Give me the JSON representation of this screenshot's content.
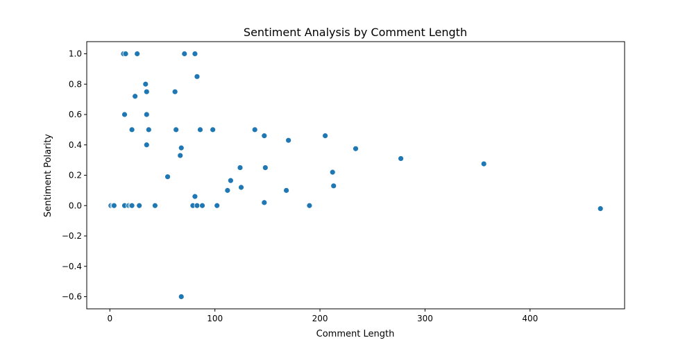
{
  "chart_data": {
    "type": "scatter",
    "title": "Sentiment Analysis by Comment Length",
    "xlabel": "Comment Length",
    "ylabel": "Sentiment Polarity",
    "xlim": [
      -22,
      490
    ],
    "ylim": [
      -0.68,
      1.08
    ],
    "xticks": [
      0,
      100,
      200,
      300,
      400
    ],
    "yticks": [
      -0.6,
      -0.4,
      -0.2,
      0.0,
      0.2,
      0.4,
      0.6,
      0.8,
      1.0
    ],
    "grid": false,
    "color": "#1f77b4",
    "points": [
      {
        "x": 13,
        "y": 1.0
      },
      {
        "x": 15,
        "y": 1.0
      },
      {
        "x": 26,
        "y": 1.0
      },
      {
        "x": 71,
        "y": 1.0
      },
      {
        "x": 81,
        "y": 1.0
      },
      {
        "x": 83,
        "y": 0.85
      },
      {
        "x": 34,
        "y": 0.8
      },
      {
        "x": 35,
        "y": 0.75
      },
      {
        "x": 62,
        "y": 0.75
      },
      {
        "x": 24,
        "y": 0.72
      },
      {
        "x": 14,
        "y": 0.6
      },
      {
        "x": 35,
        "y": 0.6
      },
      {
        "x": 21,
        "y": 0.5
      },
      {
        "x": 37,
        "y": 0.5
      },
      {
        "x": 63,
        "y": 0.5
      },
      {
        "x": 86,
        "y": 0.5
      },
      {
        "x": 98,
        "y": 0.5
      },
      {
        "x": 138,
        "y": 0.5
      },
      {
        "x": 147,
        "y": 0.46
      },
      {
        "x": 205,
        "y": 0.46
      },
      {
        "x": 170,
        "y": 0.43
      },
      {
        "x": 35,
        "y": 0.4
      },
      {
        "x": 68,
        "y": 0.38
      },
      {
        "x": 234,
        "y": 0.375
      },
      {
        "x": 67,
        "y": 0.33
      },
      {
        "x": 277,
        "y": 0.31
      },
      {
        "x": 356,
        "y": 0.275
      },
      {
        "x": 124,
        "y": 0.25
      },
      {
        "x": 148,
        "y": 0.25
      },
      {
        "x": 212,
        "y": 0.22
      },
      {
        "x": 55,
        "y": 0.19
      },
      {
        "x": 115,
        "y": 0.165
      },
      {
        "x": 213,
        "y": 0.13
      },
      {
        "x": 125,
        "y": 0.12
      },
      {
        "x": 112,
        "y": 0.1
      },
      {
        "x": 168,
        "y": 0.1
      },
      {
        "x": 81,
        "y": 0.06
      },
      {
        "x": 147,
        "y": 0.02
      },
      {
        "x": 1,
        "y": 0.0
      },
      {
        "x": 3,
        "y": 0.0
      },
      {
        "x": 4,
        "y": 0.0
      },
      {
        "x": 14,
        "y": 0.0
      },
      {
        "x": 18,
        "y": 0.0
      },
      {
        "x": 20,
        "y": 0.0
      },
      {
        "x": 21,
        "y": 0.0
      },
      {
        "x": 28,
        "y": 0.0
      },
      {
        "x": 43,
        "y": 0.0
      },
      {
        "x": 79,
        "y": 0.0
      },
      {
        "x": 83,
        "y": 0.0
      },
      {
        "x": 88,
        "y": 0.0
      },
      {
        "x": 102,
        "y": 0.0
      },
      {
        "x": 190,
        "y": 0.0
      },
      {
        "x": 467,
        "y": -0.02
      },
      {
        "x": 68,
        "y": -0.6
      }
    ]
  }
}
